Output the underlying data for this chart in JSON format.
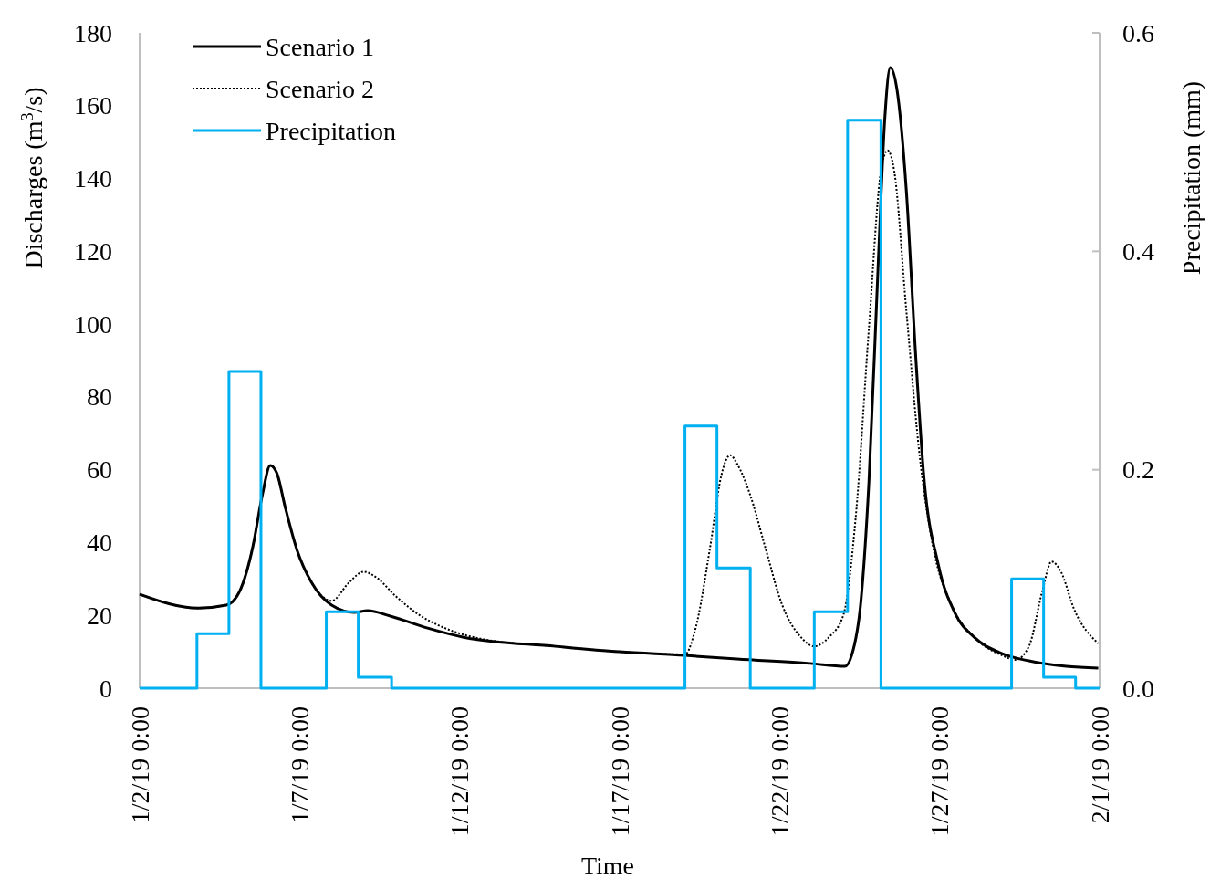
{
  "chart_data": {
    "type": "line",
    "xlabel": "Time",
    "ylabel": "Discharges (m$^{3}$/s)",
    "y2label": "Precipitation (mm)",
    "xlim": [
      "--01-02",
      "--02-01"
    ],
    "xticks": [
      {
        "value": "--01-02",
        "label": "1/2/19 0:00"
      },
      {
        "value": "--01-07",
        "label": "1/7/19 0:00"
      },
      {
        "value": "--01-12",
        "label": "1/12/19 0:00"
      },
      {
        "value": "--01-17",
        "label": "1/17/19 0:00"
      },
      {
        "value": "--01-22",
        "label": "1/22/19 0:00"
      },
      {
        "value": "--01-27",
        "label": "1/27/19 0:00"
      },
      {
        "value": "--02-01",
        "label": "2/1/19 0:00"
      }
    ],
    "ylim": [
      0,
      180
    ],
    "yticks": [
      0,
      20,
      40,
      60,
      80,
      100,
      120,
      140,
      160,
      180
    ],
    "y2lim": [
      0,
      0.6
    ],
    "y2ticks": [
      {
        "value": 0,
        "label": "0.0"
      },
      {
        "value": 0.2,
        "label": "0.2"
      },
      {
        "value": 0.4,
        "label": "0.4"
      },
      {
        "value": 0.6,
        "label": "0.6"
      }
    ],
    "legend": "top left",
    "grid": false,
    "series": [
      {
        "name": "Scenario 1",
        "color": "#000000",
        "line_style": "solid",
        "x": [
          "--01-02T00:00",
          "--01-03T20:00",
          "--01-04T17:00",
          "--01-05T03:00",
          "--01-05T13:00",
          "--01-05T20:00",
          "--01-06T02:00",
          "--01-06T07:00",
          "--01-06T13:00",
          "--01-06T22:00",
          "--01-07T09:00",
          "--01-08T00:00",
          "--01-08T17:00",
          "--01-09T03:00",
          "--01-09T20:00",
          "--01-11T00:00",
          "--01-12T03:00",
          "--01-15T00:00",
          "--01-17T00:00",
          "--01-19T01:00",
          "--01-20T16:00",
          "--01-22T23:00",
          "--01-24T01:00",
          "--01-24T06:00",
          "--01-24T13:00",
          "--01-24T19:00",
          "--01-25T02:00",
          "--01-25T07:00",
          "--01-25T11:00",
          "--01-25T16:00",
          "--01-25T23:00",
          "--01-26T06:00",
          "--01-26T12:00",
          "--01-26T23:00",
          "--01-27T12:00",
          "--01-28T02:00",
          "--01-28T23:00",
          "--01-29T19:00",
          "--01-30T23:00",
          "--01-31T23:00"
        ],
        "values": [
          25.8,
          22,
          22.8,
          26.6,
          39,
          53,
          61.2,
          59,
          50,
          38,
          29,
          22.8,
          20.8,
          21.3,
          19.8,
          16.5,
          14,
          11.5,
          10,
          9,
          8,
          6.8,
          6,
          9,
          24,
          56.7,
          117,
          157,
          170.5,
          164.5,
          137,
          91.8,
          59,
          34,
          20.3,
          14,
          9.5,
          7.5,
          6,
          5.5
        ]
      },
      {
        "name": "Scenario 2",
        "color": "#000000",
        "line_style": "dotted",
        "x": [
          "--01-02T00:00",
          "--01-03T20:00",
          "--01-04T17:00",
          "--01-05T03:00",
          "--01-05T13:00",
          "--01-05T20:00",
          "--01-06T02:00",
          "--01-06T07:00",
          "--01-06T13:00",
          "--01-06T22:00",
          "--01-07T09:00",
          "--01-08T00:00",
          "--01-08T13:00",
          "--01-09T00:00",
          "--01-09T10:00",
          "--01-10T00:00",
          "--01-10T17:00",
          "--01-11T13:00",
          "--01-12T17:00",
          "--01-15T00:00",
          "--01-17T00:00",
          "--01-19T01:00",
          "--01-19T09:00",
          "--01-19T20:00",
          "--01-20T04:00",
          "--01-20T11:00",
          "--01-20T16:00",
          "--01-21T02:00",
          "--01-21T13:00",
          "--01-22T02:00",
          "--01-22T16:00",
          "--01-23T02:00",
          "--01-23T13:00",
          "--01-24T00:00",
          "--01-24T09:00",
          "--01-24T19:00",
          "--01-25T04:00",
          "--01-25T09:00",
          "--01-25T14:00",
          "--01-25T23:00",
          "--01-26T09:00",
          "--01-26T19:00",
          "--01-27T09:00",
          "--01-28T02:00",
          "--01-28T23:00",
          "--01-29T09:00",
          "--01-29T19:00",
          "--01-30T05:00",
          "--01-30T12:00",
          "--01-30T19:00",
          "--01-31T05:00",
          "--01-31T23:00"
        ],
        "values": [
          25.8,
          22,
          22.8,
          26.6,
          39,
          53,
          61.2,
          59,
          50,
          38,
          29,
          24,
          29,
          32,
          30.3,
          25.3,
          20.3,
          16.5,
          13.5,
          11.5,
          10,
          9.3,
          16.5,
          39,
          58,
          64,
          61.7,
          53,
          39,
          22.8,
          14,
          11.5,
          14,
          20.3,
          46.6,
          99,
          142,
          147.7,
          142,
          104,
          64,
          39,
          22.8,
          14,
          9,
          7.8,
          11.5,
          26.6,
          34.8,
          32,
          21.6,
          12.3
        ]
      },
      {
        "name": "Precipitation",
        "color": "#00b0f0",
        "type": "step",
        "axis": "y2",
        "line_style": "solid",
        "x": [
          "--01-02T00:00",
          "--01-03T19:00",
          "--01-04T19:00",
          "--01-05T19:00",
          "--01-07T20:00",
          "--01-08T20:00",
          "--01-09T21:00",
          "--01-19T01:00",
          "--01-20T01:00",
          "--01-21T02:00",
          "--01-23T02:00",
          "--01-24T03:00",
          "--01-25T04:00",
          "--01-29T06:00",
          "--01-30T06:00",
          "--01-31T06:00",
          "--02-01T00:00"
        ],
        "values": [
          0,
          0.05,
          0.29,
          0,
          0.07,
          0.01,
          0,
          0.24,
          0.11,
          0,
          0.07,
          0.52,
          0,
          0.1,
          0.01,
          0,
          0
        ]
      }
    ]
  }
}
